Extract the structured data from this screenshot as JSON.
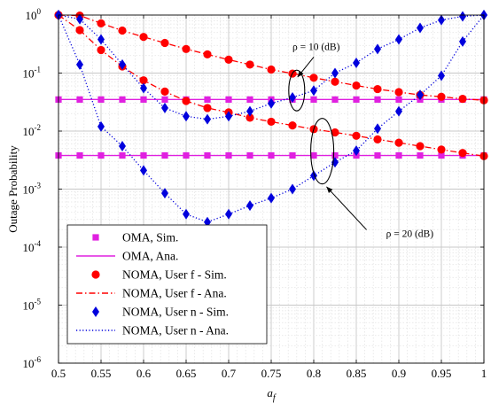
{
  "chart_data": {
    "type": "line",
    "xlabel": "a_f",
    "ylabel": "Outage Probability",
    "xlim": [
      0.5,
      1.0
    ],
    "ylim": [
      1e-06,
      1
    ],
    "yscale": "log",
    "grid": true,
    "legend_position": "bottom-left",
    "x_ticks": [
      "0.5",
      "0.55",
      "0.6",
      "0.65",
      "0.7",
      "0.75",
      "0.8",
      "0.85",
      "0.9",
      "0.95",
      "1"
    ],
    "y_ticks": [
      {
        "value": 1,
        "mant": "10",
        "exp": "0"
      },
      {
        "value": 0.1,
        "mant": "10",
        "exp": "-1"
      },
      {
        "value": 0.01,
        "mant": "10",
        "exp": "-2"
      },
      {
        "value": 0.001,
        "mant": "10",
        "exp": "-3"
      },
      {
        "value": 0.0001,
        "mant": "10",
        "exp": "-4"
      },
      {
        "value": 1e-05,
        "mant": "10",
        "exp": "-5"
      },
      {
        "value": 1e-06,
        "mant": "10",
        "exp": "-6"
      }
    ],
    "colors": {
      "oma": "#e020e0",
      "user_f": "#ff0000",
      "user_n": "#0000dd"
    },
    "series": [
      {
        "name": "OMA, Sim.",
        "group": "rho10",
        "kind": "sim",
        "marker": "square",
        "color": "#e020e0",
        "x": [
          0.5,
          0.525,
          0.55,
          0.575,
          0.6,
          0.625,
          0.65,
          0.675,
          0.7,
          0.725,
          0.75,
          0.775,
          0.8,
          0.825,
          0.85,
          0.875,
          0.9,
          0.925,
          0.95,
          0.975,
          1.0
        ],
        "y": [
          0.035,
          0.035,
          0.035,
          0.035,
          0.035,
          0.035,
          0.035,
          0.035,
          0.035,
          0.035,
          0.035,
          0.035,
          0.035,
          0.035,
          0.035,
          0.035,
          0.035,
          0.035,
          0.035,
          0.035,
          0.035
        ]
      },
      {
        "name": "OMA, Ana.",
        "group": "rho10",
        "kind": "ana",
        "style": "solid",
        "color": "#e020e0",
        "x": [
          0.5,
          1.0
        ],
        "y": [
          0.035,
          0.035
        ]
      },
      {
        "name": "OMA, Sim.",
        "group": "rho20",
        "kind": "sim",
        "marker": "square",
        "color": "#e020e0",
        "x": [
          0.5,
          0.525,
          0.55,
          0.575,
          0.6,
          0.625,
          0.65,
          0.675,
          0.7,
          0.725,
          0.75,
          0.775,
          0.8,
          0.825,
          0.85,
          0.875,
          0.9,
          0.925,
          0.95,
          0.975,
          1.0
        ],
        "y": [
          0.0038,
          0.0038,
          0.0038,
          0.0038,
          0.0038,
          0.0038,
          0.0038,
          0.0038,
          0.0038,
          0.0038,
          0.0038,
          0.0038,
          0.0038,
          0.0038,
          0.0038,
          0.0038,
          0.0038,
          0.0038,
          0.0038,
          0.0038,
          0.0038
        ]
      },
      {
        "name": "OMA, Ana.",
        "group": "rho20",
        "kind": "ana",
        "style": "solid",
        "color": "#e020e0",
        "x": [
          0.5,
          1.0
        ],
        "y": [
          0.0038,
          0.0038
        ]
      },
      {
        "name": "NOMA, User f - Sim.",
        "group": "rho10",
        "kind": "sim",
        "marker": "circle",
        "color": "#ff0000",
        "x": [
          0.5,
          0.525,
          0.55,
          0.575,
          0.6,
          0.625,
          0.65,
          0.675,
          0.7,
          0.725,
          0.75,
          0.775,
          0.8,
          0.825,
          0.85,
          0.875,
          0.9,
          0.925,
          0.95,
          0.975,
          1.0
        ],
        "y": [
          1.0,
          0.98,
          0.72,
          0.54,
          0.42,
          0.33,
          0.26,
          0.21,
          0.17,
          0.14,
          0.115,
          0.098,
          0.083,
          0.071,
          0.061,
          0.053,
          0.047,
          0.042,
          0.039,
          0.036,
          0.034
        ]
      },
      {
        "name": "NOMA, User f - Ana.",
        "group": "rho10",
        "kind": "ana",
        "style": "dashdot",
        "color": "#ff0000",
        "x": [
          0.5,
          0.525,
          0.55,
          0.575,
          0.6,
          0.625,
          0.65,
          0.675,
          0.7,
          0.725,
          0.75,
          0.775,
          0.8,
          0.825,
          0.85,
          0.875,
          0.9,
          0.925,
          0.95,
          0.975,
          1.0
        ],
        "y": [
          1.0,
          0.98,
          0.72,
          0.54,
          0.42,
          0.33,
          0.26,
          0.21,
          0.17,
          0.14,
          0.115,
          0.098,
          0.083,
          0.071,
          0.061,
          0.053,
          0.047,
          0.042,
          0.039,
          0.036,
          0.034
        ]
      },
      {
        "name": "NOMA, User f - Sim.",
        "group": "rho20",
        "kind": "sim",
        "marker": "circle",
        "color": "#ff0000",
        "x": [
          0.5,
          0.525,
          0.55,
          0.575,
          0.6,
          0.625,
          0.65,
          0.675,
          0.7,
          0.725,
          0.75,
          0.775,
          0.8,
          0.825,
          0.85,
          0.875,
          0.9,
          0.925,
          0.95,
          0.975,
          1.0
        ],
        "y": [
          1.0,
          0.55,
          0.25,
          0.13,
          0.075,
          0.048,
          0.033,
          0.025,
          0.021,
          0.017,
          0.0145,
          0.0125,
          0.0108,
          0.0095,
          0.0083,
          0.0072,
          0.0063,
          0.0055,
          0.0048,
          0.0042,
          0.0037
        ]
      },
      {
        "name": "NOMA, User f - Ana.",
        "group": "rho20",
        "kind": "ana",
        "style": "dashdot",
        "color": "#ff0000",
        "x": [
          0.5,
          0.525,
          0.55,
          0.575,
          0.6,
          0.625,
          0.65,
          0.675,
          0.7,
          0.725,
          0.75,
          0.775,
          0.8,
          0.825,
          0.85,
          0.875,
          0.9,
          0.925,
          0.95,
          0.975,
          1.0
        ],
        "y": [
          1.0,
          0.55,
          0.25,
          0.13,
          0.075,
          0.048,
          0.033,
          0.025,
          0.021,
          0.017,
          0.0145,
          0.0125,
          0.0108,
          0.0095,
          0.0083,
          0.0072,
          0.0063,
          0.0055,
          0.0048,
          0.0042,
          0.0037
        ]
      },
      {
        "name": "NOMA, User n - Sim.",
        "group": "rho10",
        "kind": "sim",
        "marker": "diamond",
        "color": "#0000dd",
        "x": [
          0.5,
          0.525,
          0.55,
          0.575,
          0.6,
          0.625,
          0.65,
          0.675,
          0.7,
          0.725,
          0.75,
          0.775,
          0.8,
          0.825,
          0.85,
          0.875,
          0.9,
          0.925,
          0.95,
          0.975,
          1.0
        ],
        "y": [
          1.0,
          0.85,
          0.38,
          0.14,
          0.055,
          0.025,
          0.018,
          0.016,
          0.018,
          0.022,
          0.03,
          0.038,
          0.05,
          0.1,
          0.15,
          0.26,
          0.38,
          0.6,
          0.82,
          0.95,
          1.0
        ]
      },
      {
        "name": "NOMA, User n - Ana.",
        "group": "rho10",
        "kind": "ana",
        "style": "dotted",
        "color": "#0000dd",
        "x": [
          0.5,
          0.525,
          0.55,
          0.575,
          0.6,
          0.625,
          0.65,
          0.675,
          0.7,
          0.725,
          0.75,
          0.775,
          0.8,
          0.825,
          0.85,
          0.875,
          0.9,
          0.925,
          0.95,
          0.975,
          1.0
        ],
        "y": [
          1.0,
          0.85,
          0.38,
          0.14,
          0.055,
          0.025,
          0.018,
          0.016,
          0.018,
          0.022,
          0.03,
          0.038,
          0.05,
          0.1,
          0.15,
          0.26,
          0.38,
          0.6,
          0.82,
          0.95,
          1.0
        ]
      },
      {
        "name": "NOMA, User n - Sim.",
        "group": "rho20",
        "kind": "sim",
        "marker": "diamond",
        "color": "#0000dd",
        "x": [
          0.5,
          0.525,
          0.55,
          0.575,
          0.6,
          0.625,
          0.65,
          0.675,
          0.7,
          0.725,
          0.75,
          0.775,
          0.8,
          0.825,
          0.85,
          0.875,
          0.9,
          0.925,
          0.95,
          0.975,
          1.0
        ],
        "y": [
          1.0,
          0.14,
          0.012,
          0.0055,
          0.0021,
          0.00085,
          0.00037,
          0.00027,
          0.00037,
          0.00052,
          0.0007,
          0.001,
          0.0017,
          0.0029,
          0.0046,
          0.011,
          0.022,
          0.042,
          0.09,
          0.35,
          1.0
        ]
      },
      {
        "name": "NOMA, User n - Ana.",
        "group": "rho20",
        "kind": "ana",
        "style": "dotted",
        "color": "#0000dd",
        "x": [
          0.5,
          0.525,
          0.55,
          0.575,
          0.6,
          0.625,
          0.65,
          0.675,
          0.7,
          0.725,
          0.75,
          0.775,
          0.8,
          0.825,
          0.85,
          0.875,
          0.9,
          0.925,
          0.95,
          0.975,
          1.0
        ],
        "y": [
          1.0,
          0.14,
          0.012,
          0.0055,
          0.0021,
          0.00085,
          0.00037,
          0.00027,
          0.00037,
          0.00052,
          0.0007,
          0.001,
          0.0017,
          0.0029,
          0.0046,
          0.011,
          0.022,
          0.042,
          0.09,
          0.35,
          1.0
        ]
      }
    ],
    "legend": [
      {
        "label": "OMA, Sim.",
        "color": "#e020e0",
        "marker": "square",
        "line": "none"
      },
      {
        "label": "OMA, Ana.",
        "color": "#e020e0",
        "marker": "none",
        "line": "solid"
      },
      {
        "label": "NOMA, User f - Sim.",
        "color": "#ff0000",
        "marker": "circle",
        "line": "none"
      },
      {
        "label": "NOMA, User f - Ana.",
        "color": "#ff0000",
        "marker": "none",
        "line": "dashdot"
      },
      {
        "label": "NOMA, User n - Sim.",
        "color": "#0000dd",
        "marker": "diamond",
        "line": "none"
      },
      {
        "label": "NOMA, User n - Ana.",
        "color": "#0000dd",
        "marker": "none",
        "line": "dotted"
      }
    ],
    "annotations": [
      {
        "label": "ρ = 10 (dB)",
        "text_x": 0.775,
        "text_y": 0.25,
        "ellipse_x": 0.78,
        "ellipse_y": 0.05,
        "arrow_to_x": 0.781,
        "arrow_to_y": 0.085
      },
      {
        "label": "ρ = 20 (dB)",
        "text_x": 0.885,
        "text_y": 0.00015,
        "ellipse_x": 0.81,
        "ellipse_y": 0.0045,
        "arrow_to_x": 0.815,
        "arrow_to_y": 0.0011
      }
    ]
  }
}
